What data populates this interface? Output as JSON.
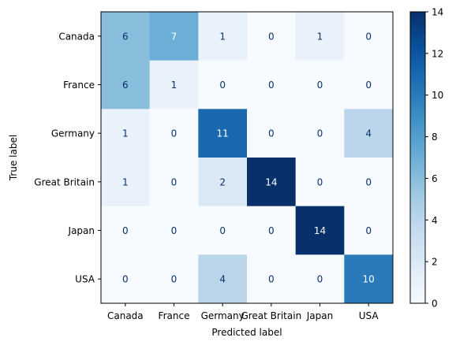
{
  "chart_data": {
    "type": "heatmap",
    "title": "",
    "xlabel": "Predicted label",
    "ylabel": "True label",
    "x_categories": [
      "Canada",
      "France",
      "Germany",
      "Great Britain",
      "Japan",
      "USA"
    ],
    "y_categories": [
      "Canada",
      "France",
      "Germany",
      "Great Britain",
      "Japan",
      "USA"
    ],
    "values": [
      [
        6,
        7,
        1,
        0,
        1,
        0
      ],
      [
        6,
        1,
        0,
        0,
        0,
        0
      ],
      [
        1,
        0,
        11,
        0,
        0,
        4
      ],
      [
        1,
        0,
        2,
        14,
        0,
        0
      ],
      [
        0,
        0,
        0,
        0,
        14,
        0
      ],
      [
        0,
        0,
        4,
        0,
        0,
        10
      ]
    ],
    "colorbar": {
      "min": 0,
      "max": 14,
      "ticks": [
        0,
        2,
        4,
        6,
        8,
        10,
        12,
        14
      ]
    },
    "colormap": "Blues",
    "grid": false
  }
}
